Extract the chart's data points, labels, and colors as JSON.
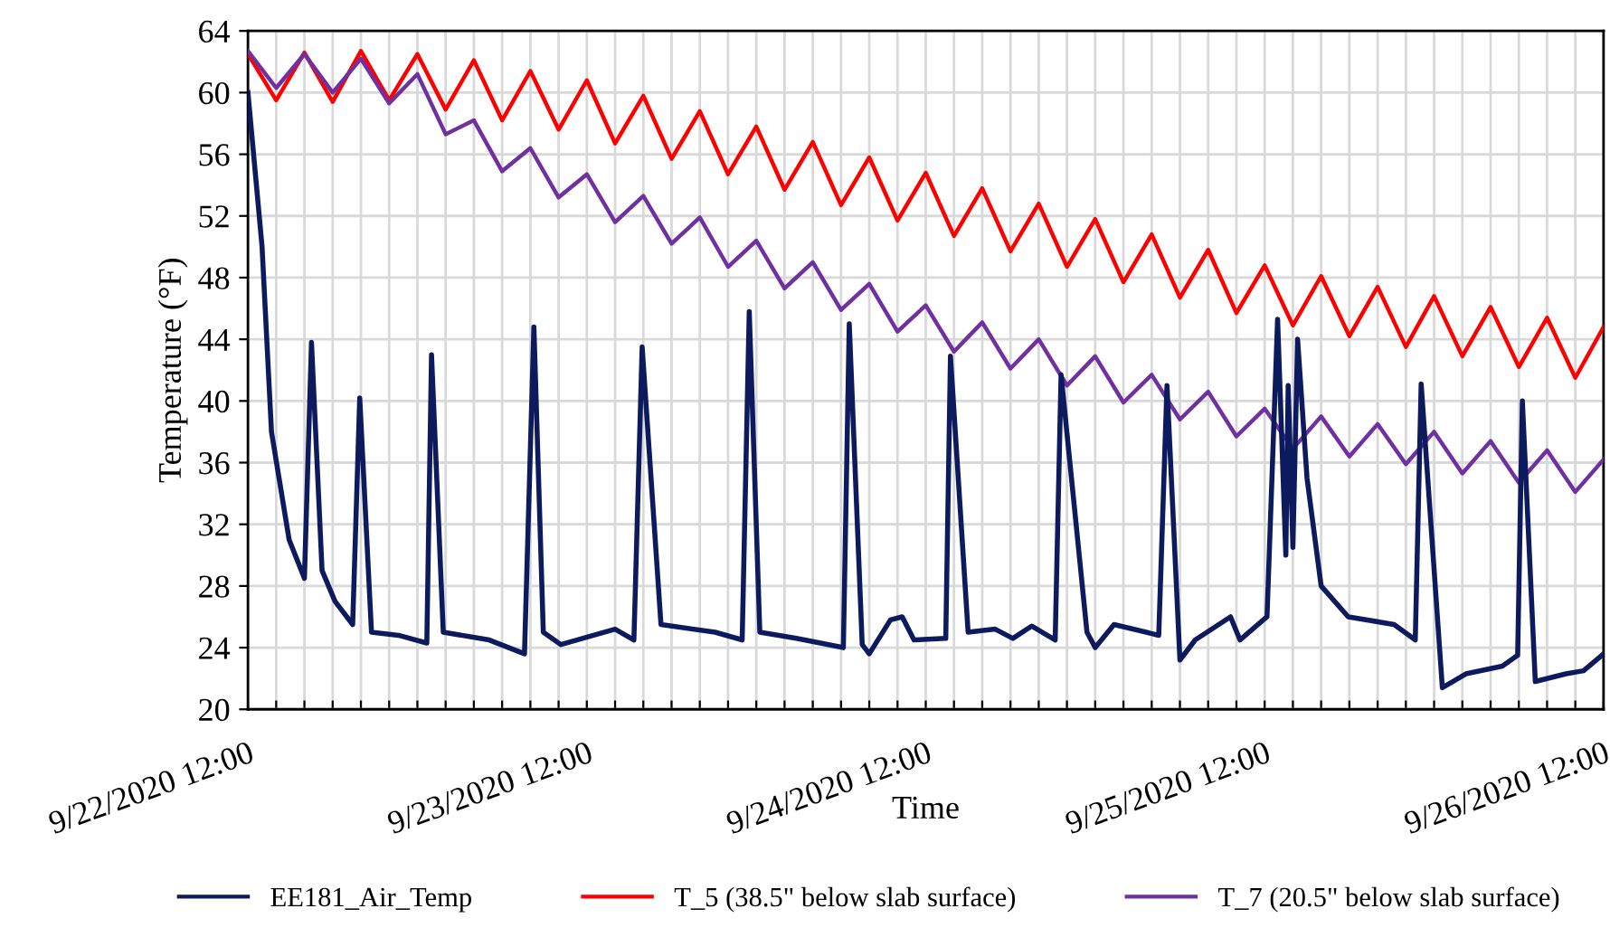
{
  "chart_data": {
    "type": "line",
    "xlabel": "Time",
    "ylabel": "Temperature (°F)",
    "grid": true,
    "legend": "bottom",
    "marker": "none",
    "line_style": "solid",
    "xlim": [
      "2020-09-22T12:00",
      "2020-09-26T12:00"
    ],
    "ylim": [
      20,
      64
    ],
    "yticks": [
      20,
      24,
      28,
      32,
      36,
      40,
      44,
      48,
      52,
      56,
      60,
      64
    ],
    "xticks": [
      {
        "value": "2020-09-22T12:00",
        "label": "9/22/2020 12:00"
      },
      {
        "value": "2020-09-22T14:00",
        "label": null
      },
      {
        "value": "2020-09-22T16:00",
        "label": null
      },
      {
        "value": "2020-09-22T18:00",
        "label": null
      },
      {
        "value": "2020-09-22T20:00",
        "label": null
      },
      {
        "value": "2020-09-22T22:00",
        "label": null
      },
      {
        "value": "2020-09-23T00:00",
        "label": null
      },
      {
        "value": "2020-09-23T02:00",
        "label": null
      },
      {
        "value": "2020-09-23T04:00",
        "label": null
      },
      {
        "value": "2020-09-23T06:00",
        "label": null
      },
      {
        "value": "2020-09-23T08:00",
        "label": null
      },
      {
        "value": "2020-09-23T10:00",
        "label": null
      },
      {
        "value": "2020-09-23T12:00",
        "label": "9/23/2020 12:00"
      },
      {
        "value": "2020-09-23T14:00",
        "label": null
      },
      {
        "value": "2020-09-23T16:00",
        "label": null
      },
      {
        "value": "2020-09-23T18:00",
        "label": null
      },
      {
        "value": "2020-09-23T20:00",
        "label": null
      },
      {
        "value": "2020-09-23T22:00",
        "label": null
      },
      {
        "value": "2020-09-24T00:00",
        "label": null
      },
      {
        "value": "2020-09-24T02:00",
        "label": null
      },
      {
        "value": "2020-09-24T04:00",
        "label": null
      },
      {
        "value": "2020-09-24T06:00",
        "label": null
      },
      {
        "value": "2020-09-24T08:00",
        "label": null
      },
      {
        "value": "2020-09-24T10:00",
        "label": null
      },
      {
        "value": "2020-09-24T12:00",
        "label": "9/24/2020 12:00"
      },
      {
        "value": "2020-09-24T14:00",
        "label": null
      },
      {
        "value": "2020-09-24T16:00",
        "label": null
      },
      {
        "value": "2020-09-24T18:00",
        "label": null
      },
      {
        "value": "2020-09-24T20:00",
        "label": null
      },
      {
        "value": "2020-09-24T22:00",
        "label": null
      },
      {
        "value": "2020-09-25T00:00",
        "label": null
      },
      {
        "value": "2020-09-25T02:00",
        "label": null
      },
      {
        "value": "2020-09-25T04:00",
        "label": null
      },
      {
        "value": "2020-09-25T06:00",
        "label": null
      },
      {
        "value": "2020-09-25T08:00",
        "label": null
      },
      {
        "value": "2020-09-25T10:00",
        "label": null
      },
      {
        "value": "2020-09-25T12:00",
        "label": "9/25/2020 12:00"
      },
      {
        "value": "2020-09-25T14:00",
        "label": null
      },
      {
        "value": "2020-09-25T16:00",
        "label": null
      },
      {
        "value": "2020-09-25T18:00",
        "label": null
      },
      {
        "value": "2020-09-25T20:00",
        "label": null
      },
      {
        "value": "2020-09-25T22:00",
        "label": null
      },
      {
        "value": "2020-09-26T00:00",
        "label": null
      },
      {
        "value": "2020-09-26T02:00",
        "label": null
      },
      {
        "value": "2020-09-26T04:00",
        "label": null
      },
      {
        "value": "2020-09-26T06:00",
        "label": null
      },
      {
        "value": "2020-09-26T08:00",
        "label": null
      },
      {
        "value": "2020-09-26T10:00",
        "label": null
      },
      {
        "value": "2020-09-26T12:00",
        "label": "9/26/2020 12:00"
      }
    ],
    "x": [
      "2020-09-22T12:00",
      "2020-09-22T14:00",
      "2020-09-22T16:00",
      "2020-09-22T18:00",
      "2020-09-22T20:00",
      "2020-09-22T22:00",
      "2020-09-23T00:00",
      "2020-09-23T02:00",
      "2020-09-23T04:00",
      "2020-09-23T06:00",
      "2020-09-23T08:00",
      "2020-09-23T10:00",
      "2020-09-23T12:00",
      "2020-09-23T14:00",
      "2020-09-23T16:00",
      "2020-09-23T18:00",
      "2020-09-23T20:00",
      "2020-09-23T22:00",
      "2020-09-24T00:00",
      "2020-09-24T02:00",
      "2020-09-24T04:00",
      "2020-09-24T06:00",
      "2020-09-24T08:00",
      "2020-09-24T10:00",
      "2020-09-24T12:00",
      "2020-09-24T14:00",
      "2020-09-24T16:00",
      "2020-09-24T18:00",
      "2020-09-24T20:00",
      "2020-09-24T22:00",
      "2020-09-25T00:00",
      "2020-09-25T02:00",
      "2020-09-25T04:00",
      "2020-09-25T06:00",
      "2020-09-25T08:00",
      "2020-09-25T10:00",
      "2020-09-25T12:00",
      "2020-09-25T14:00",
      "2020-09-25T16:00",
      "2020-09-25T18:00",
      "2020-09-25T20:00",
      "2020-09-25T22:00",
      "2020-09-26T00:00",
      "2020-09-26T02:00",
      "2020-09-26T04:00",
      "2020-09-26T06:00",
      "2020-09-26T08:00",
      "2020-09-26T10:00",
      "2020-09-26T12:00"
    ],
    "series": [
      {
        "name": "EE181_Air_Temp",
        "color": "#0d1b5e",
        "x": [
          "2020-09-22T12:00",
          "2020-09-22T13:00",
          "2020-09-22T13:40",
          "2020-09-22T14:55",
          "2020-09-22T16:00",
          "2020-09-22T16:30",
          "2020-09-22T17:15",
          "2020-09-22T18:10",
          "2020-09-22T19:25",
          "2020-09-22T19:55",
          "2020-09-22T20:45",
          "2020-09-22T22:40",
          "2020-09-23T00:40",
          "2020-09-23T01:00",
          "2020-09-23T01:50",
          "2020-09-23T05:05",
          "2020-09-23T07:35",
          "2020-09-23T08:15",
          "2020-09-23T08:55",
          "2020-09-23T10:10",
          "2020-09-23T14:00",
          "2020-09-23T15:20",
          "2020-09-23T15:55",
          "2020-09-23T17:15",
          "2020-09-23T21:05",
          "2020-09-23T23:00",
          "2020-09-23T23:30",
          "2020-09-24T00:15",
          "2020-09-24T02:50",
          "2020-09-24T06:10",
          "2020-09-24T06:35",
          "2020-09-24T07:30",
          "2020-09-24T08:00",
          "2020-09-24T09:30",
          "2020-09-24T10:20",
          "2020-09-24T11:10",
          "2020-09-24T13:25",
          "2020-09-24T13:45",
          "2020-09-24T15:00",
          "2020-09-24T16:55",
          "2020-09-24T18:10",
          "2020-09-24T19:30",
          "2020-09-24T21:10",
          "2020-09-24T21:35",
          "2020-09-24T23:25",
          "2020-09-25T00:00",
          "2020-09-25T01:20",
          "2020-09-25T04:30",
          "2020-09-25T05:05",
          "2020-09-25T06:00",
          "2020-09-25T07:05",
          "2020-09-25T09:35",
          "2020-09-25T10:15",
          "2020-09-25T12:10",
          "2020-09-25T12:55",
          "2020-09-25T13:30",
          "2020-09-25T13:40",
          "2020-09-25T14:00",
          "2020-09-25T14:20",
          "2020-09-25T15:00",
          "2020-09-25T16:00",
          "2020-09-25T17:55",
          "2020-09-25T21:10",
          "2020-09-25T22:40",
          "2020-09-25T23:05",
          "2020-09-26T00:35",
          "2020-09-26T02:15",
          "2020-09-26T04:50",
          "2020-09-26T05:55",
          "2020-09-26T06:15",
          "2020-09-26T07:10",
          "2020-09-26T09:20",
          "2020-09-26T10:35",
          "2020-09-26T12:00"
        ],
        "values": [
          60,
          50,
          38,
          31,
          28.5,
          43.8,
          29,
          27,
          25.5,
          40.2,
          25,
          24.8,
          24.3,
          43,
          25,
          24.5,
          23.6,
          44.8,
          25,
          24.2,
          25.2,
          24.5,
          43.5,
          25.5,
          25,
          24.5,
          45.8,
          25,
          24.6,
          24.0,
          45,
          24.2,
          23.6,
          25.8,
          26,
          24.5,
          24.6,
          42.9,
          25,
          25.2,
          24.6,
          25.4,
          24.5,
          41.7,
          25,
          24,
          25.5,
          24.8,
          41,
          23.2,
          24.5,
          26,
          24.5,
          26,
          45.3,
          30,
          41,
          30.5,
          44,
          35,
          28,
          26,
          25.5,
          24.5,
          41.1,
          21.4,
          22.3,
          22.8,
          23.5,
          40,
          21.8,
          22.3,
          22.5,
          23.6
        ]
      },
      {
        "name": "T_5 (38.5\" below slab surface)",
        "color": "#ff0000",
        "values": [
          62.5,
          59.5,
          62.6,
          59.4,
          62.7,
          59.5,
          62.5,
          58.9,
          62.1,
          58.2,
          61.4,
          57.6,
          60.8,
          56.7,
          59.8,
          55.7,
          58.8,
          54.7,
          57.8,
          53.7,
          56.8,
          52.7,
          55.8,
          51.7,
          54.8,
          50.7,
          53.8,
          49.7,
          52.8,
          48.7,
          51.8,
          47.7,
          50.8,
          46.7,
          49.8,
          45.7,
          48.8,
          44.9,
          48.1,
          44.2,
          47.4,
          43.5,
          46.8,
          42.9,
          46.1,
          42.2,
          45.4,
          41.5,
          44.8
        ]
      },
      {
        "name": "T_7 (20.5\" below slab surface)",
        "color": "#7030a0",
        "values": [
          62.7,
          60.3,
          62.5,
          60.0,
          62.2,
          59.3,
          61.2,
          57.3,
          58.2,
          54.9,
          56.4,
          53.2,
          54.7,
          51.6,
          53.3,
          50.2,
          51.9,
          48.7,
          50.4,
          47.3,
          49.0,
          45.9,
          47.6,
          44.5,
          46.2,
          43.2,
          45.1,
          42.1,
          44.0,
          41.0,
          42.9,
          39.9,
          41.7,
          38.8,
          40.6,
          37.7,
          39.5,
          36.9,
          39.0,
          36.4,
          38.5,
          35.9,
          38.0,
          35.3,
          37.4,
          34.7,
          36.8,
          34.1,
          36.2
        ]
      }
    ]
  }
}
